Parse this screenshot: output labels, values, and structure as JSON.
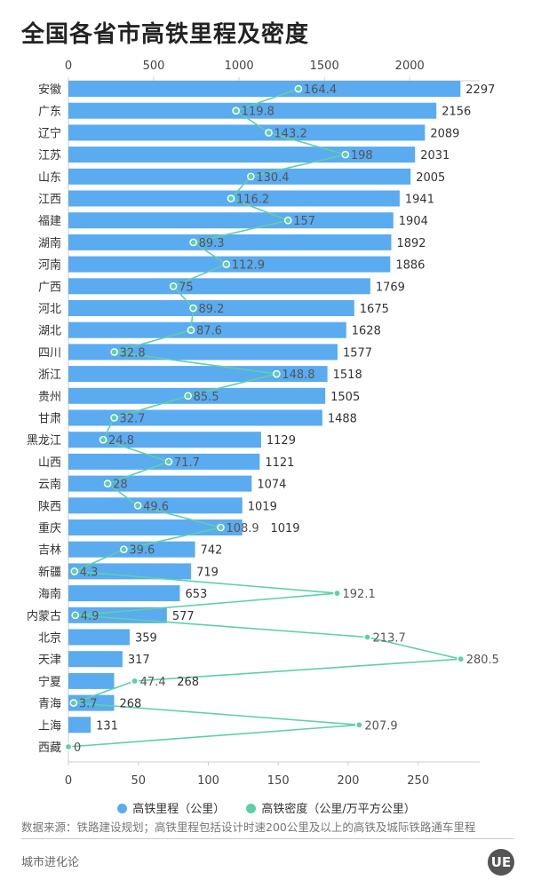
{
  "title": "全国各省市高铁里程及密度",
  "chart_data": {
    "type": "bar",
    "orientation": "horizontal",
    "categories": [
      "安徽",
      "广东",
      "辽宁",
      "江苏",
      "山东",
      "江西",
      "福建",
      "湖南",
      "河南",
      "广西",
      "河北",
      "湖北",
      "四川",
      "浙江",
      "贵州",
      "甘肃",
      "黑龙江",
      "山西",
      "云南",
      "陕西",
      "重庆",
      "吉林",
      "新疆",
      "海南",
      "内蒙古",
      "北京",
      "天津",
      "宁夏",
      "青海",
      "上海",
      "西藏"
    ],
    "series": [
      {
        "name": "高铁里程（公里）",
        "type": "bar",
        "axis": "top",
        "color": "#5aabf0",
        "values": [
          2297,
          2156,
          2089,
          2031,
          2005,
          1941,
          1904,
          1892,
          1886,
          1769,
          1675,
          1628,
          1577,
          1518,
          1505,
          1488,
          1129,
          1121,
          1074,
          1019,
          null,
          742,
          719,
          653,
          577,
          359,
          317,
          null,
          268,
          131,
          null
        ]
      },
      {
        "name": "高铁密度（公里/万平方公里）",
        "type": "line",
        "axis": "bottom",
        "color": "#5ed0a7",
        "values": [
          164.4,
          119.8,
          143.2,
          198,
          130.4,
          116.2,
          157,
          89.3,
          112.9,
          75,
          89.2,
          87.6,
          32.8,
          148.8,
          85.5,
          32.7,
          24.8,
          71.7,
          28,
          49.6,
          108.9,
          39.6,
          4.3,
          192.1,
          4.9,
          213.7,
          280.5,
          47.4,
          3.7,
          207.9,
          0
        ]
      }
    ],
    "top_axis": {
      "ticks": [
        0,
        500,
        1000,
        1500,
        2000
      ],
      "range": [
        0,
        2410
      ]
    },
    "bottom_axis": {
      "ticks": [
        0,
        50,
        100,
        150,
        200,
        250
      ],
      "range": [
        0,
        294
      ]
    },
    "legend_placement": "bottom",
    "grid": false
  },
  "bar_values_extra": {
    "重庆": 1019,
    "宁夏": 268
  },
  "legend": [
    "高铁里程（公里）",
    "高铁密度（公里/万平方公里）"
  ],
  "source": "数据来源：铁路建设规划；高铁里程包括设计时速200公里及以上的高铁及城际铁路通车里程",
  "footer": "城市进化论",
  "logo_text": "UE"
}
